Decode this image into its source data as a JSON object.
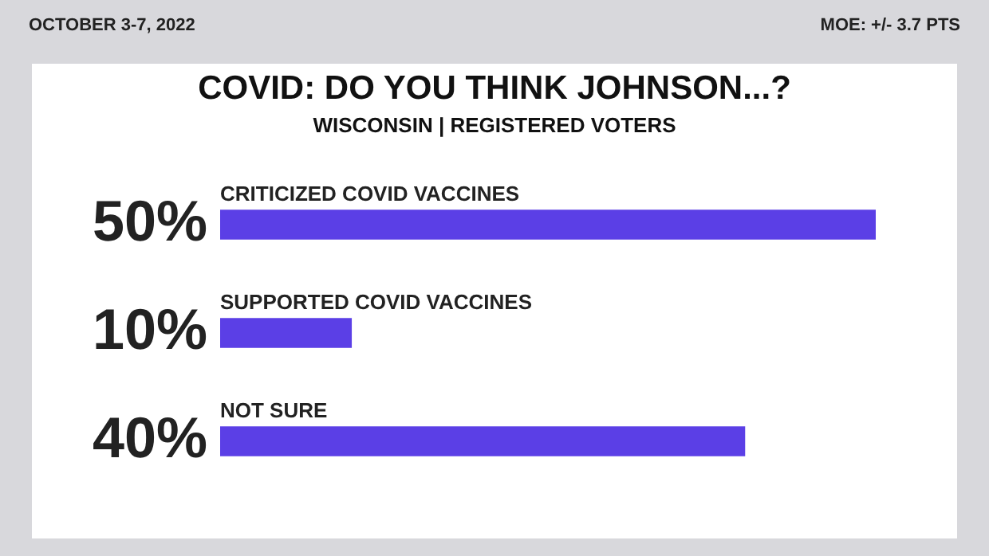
{
  "chart_data": {
    "type": "bar",
    "orientation": "horizontal",
    "title": "COVID: DO YOU THINK JOHNSON...?",
    "subtitle": "WISCONSIN | REGISTERED VOTERS",
    "annotations": [
      "OCTOBER 3-7, 2022",
      "MOE: +/- 3.7 PTS"
    ],
    "categories": [
      "CRITICIZED COVID VACCINES",
      "SUPPORTED COVID VACCINES",
      "NOT SURE"
    ],
    "values": [
      50,
      10,
      40
    ],
    "color": "#5b3fe6",
    "data_labels": true,
    "value_labels": [
      "50%",
      "10%",
      "40%"
    ]
  }
}
